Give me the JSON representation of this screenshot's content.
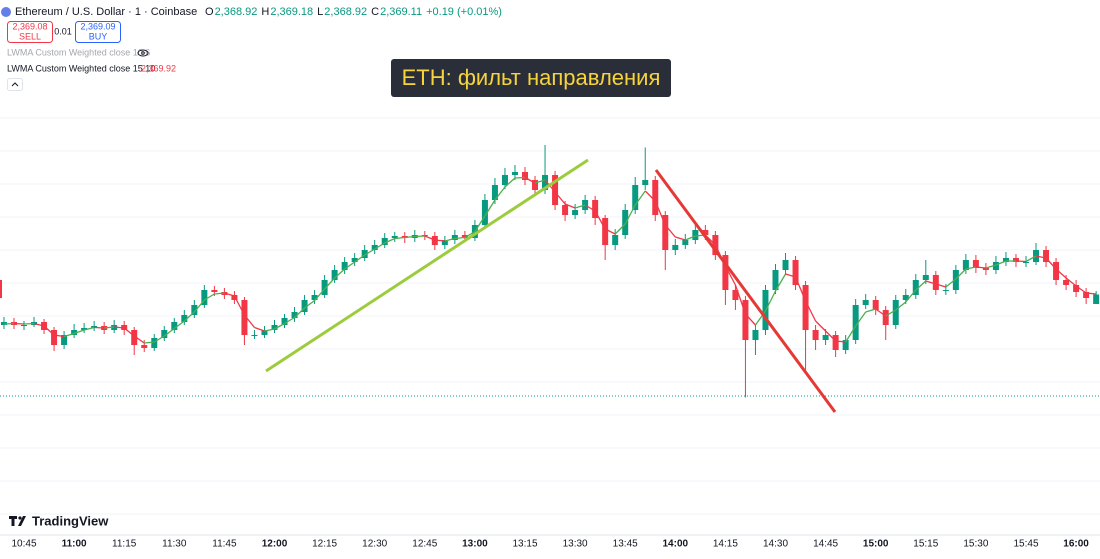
{
  "header": {
    "symbol": "Ethereum / U.S. Dollar · 1 · Coinbase",
    "ohlc": [
      {
        "key": "O",
        "value": "2,368.92"
      },
      {
        "key": "H",
        "value": "2,369.18"
      },
      {
        "key": "L",
        "value": "2,368.92"
      },
      {
        "key": "C",
        "value": "2,369.11"
      }
    ],
    "change": "+0.19 (+0.01%)",
    "sell": {
      "price": "2,369.08",
      "label": "SELL"
    },
    "spread": "0.01",
    "buy": {
      "price": "2,369.09",
      "label": "BUY"
    },
    "indicator1": "LWMA Custom Weighted close 10 6",
    "indicator2": {
      "name": "LWMA Custom Weighted close 15 10",
      "value": "2,369.92"
    }
  },
  "annotation": "ETH: фильт направления",
  "logo": "TradingView",
  "chart_data": {
    "type": "candlestick",
    "up_color": "#089981",
    "down_color": "#f23645",
    "ylim": [
      2364,
      2375
    ],
    "categories": [
      null,
      null,
      "10:45",
      null,
      null,
      null,
      null,
      "11:00",
      null,
      null,
      null,
      null,
      "11:15",
      null,
      null,
      null,
      null,
      "11:30",
      null,
      null,
      null,
      null,
      "11:45",
      null,
      null,
      null,
      null,
      "12:00",
      null,
      null,
      null,
      null,
      "12:15",
      null,
      null,
      null,
      null,
      "12:30",
      null,
      null,
      null,
      null,
      "12:45",
      null,
      null,
      null,
      null,
      "13:00",
      null,
      null,
      null,
      null,
      "13:15",
      null,
      null,
      null,
      null,
      "13:30",
      null,
      null,
      null,
      null,
      "13:45",
      null,
      null,
      null,
      null,
      "14:00",
      null,
      null,
      null,
      null,
      "14:15",
      null,
      null,
      null,
      null,
      "14:30",
      null,
      null,
      null,
      null,
      "14:45",
      null,
      null,
      null,
      null,
      "15:00",
      null,
      null,
      null,
      null,
      "15:15",
      null,
      null,
      null,
      null,
      "15:30",
      null,
      null,
      null,
      null,
      "15:45",
      null,
      null,
      null,
      null,
      "16:00",
      null,
      null
    ],
    "open": [
      2368.5,
      2368.56,
      2368.5,
      2368.5,
      2368.56,
      2368.4,
      2368.1,
      2368.3,
      2368.4,
      2368.44,
      2368.48,
      2368.4,
      2368.5,
      2368.4,
      2368.1,
      2368.04,
      2368.24,
      2368.4,
      2368.56,
      2368.7,
      2368.9,
      2369.2,
      2369.16,
      2369.1,
      2369.0,
      2368.3,
      2368.3,
      2368.4,
      2368.5,
      2368.64,
      2368.76,
      2369.0,
      2369.1,
      2369.4,
      2369.6,
      2369.76,
      2369.84,
      2370.0,
      2370.1,
      2370.24,
      2370.28,
      2370.24,
      2370.3,
      2370.28,
      2370.1,
      2370.2,
      2370.3,
      2370.24,
      2370.5,
      2371.0,
      2371.3,
      2371.5,
      2371.56,
      2371.4,
      2371.2,
      2371.5,
      2370.9,
      2370.7,
      2370.8,
      2371.0,
      2370.64,
      2370.1,
      2370.3,
      2370.8,
      2371.3,
      2371.4,
      2370.7,
      2370.0,
      2370.1,
      2370.2,
      2370.4,
      2370.3,
      2369.9,
      2369.2,
      2369.0,
      2368.2,
      2368.4,
      2369.2,
      2369.6,
      2369.8,
      2369.3,
      2368.4,
      2368.2,
      2368.3,
      2368.0,
      2368.2,
      2368.9,
      2369.0,
      2368.8,
      2368.5,
      2369.0,
      2369.1,
      2369.4,
      2369.5,
      2369.2,
      2369.2,
      2369.6,
      2369.8,
      2369.64,
      2369.6,
      2369.76,
      2369.84,
      2369.76,
      2369.76,
      2370.0,
      2369.76,
      2369.4,
      2369.3,
      2369.16,
      2368.92
    ],
    "high": [
      2368.66,
      2368.64,
      2368.58,
      2368.66,
      2368.62,
      2368.46,
      2368.38,
      2368.52,
      2368.54,
      2368.58,
      2368.56,
      2368.6,
      2368.58,
      2368.46,
      2368.2,
      2368.32,
      2368.48,
      2368.64,
      2368.8,
      2369.0,
      2369.3,
      2369.28,
      2369.24,
      2369.18,
      2369.06,
      2368.4,
      2368.48,
      2368.6,
      2368.72,
      2368.86,
      2369.1,
      2369.2,
      2369.5,
      2369.7,
      2369.86,
      2369.94,
      2370.1,
      2370.2,
      2370.34,
      2370.36,
      2370.36,
      2370.4,
      2370.38,
      2370.36,
      2370.28,
      2370.4,
      2370.38,
      2370.6,
      2371.12,
      2371.44,
      2371.64,
      2371.7,
      2371.66,
      2371.48,
      2372.1,
      2371.58,
      2370.98,
      2370.92,
      2371.1,
      2371.08,
      2370.7,
      2370.42,
      2370.92,
      2371.46,
      2372.05,
      2371.48,
      2370.78,
      2370.22,
      2370.32,
      2370.52,
      2370.5,
      2370.38,
      2369.98,
      2369.3,
      2369.08,
      2368.52,
      2369.3,
      2369.72,
      2369.94,
      2369.88,
      2369.38,
      2368.5,
      2368.42,
      2368.38,
      2368.3,
      2369.02,
      2369.12,
      2369.08,
      2368.88,
      2369.1,
      2369.22,
      2369.52,
      2369.8,
      2369.58,
      2369.32,
      2369.7,
      2369.92,
      2369.9,
      2369.74,
      2369.88,
      2369.96,
      2369.92,
      2369.88,
      2370.14,
      2370.08,
      2369.84,
      2369.5,
      2369.4,
      2369.24,
      2369.18
    ],
    "low": [
      2368.42,
      2368.42,
      2368.4,
      2368.46,
      2368.32,
      2367.98,
      2368.02,
      2368.24,
      2368.34,
      2368.38,
      2368.32,
      2368.34,
      2368.3,
      2367.9,
      2367.96,
      2367.98,
      2368.18,
      2368.34,
      2368.5,
      2368.64,
      2368.84,
      2369.08,
      2369.02,
      2368.92,
      2368.1,
      2368.22,
      2368.24,
      2368.34,
      2368.44,
      2368.56,
      2368.7,
      2368.92,
      2369.04,
      2369.34,
      2369.52,
      2369.68,
      2369.78,
      2369.92,
      2370.04,
      2370.16,
      2370.14,
      2370.16,
      2370.2,
      2370.0,
      2370.02,
      2370.12,
      2370.16,
      2370.18,
      2370.42,
      2370.92,
      2371.22,
      2371.4,
      2371.3,
      2371.1,
      2371.12,
      2370.8,
      2370.58,
      2370.62,
      2370.72,
      2370.5,
      2369.8,
      2370.0,
      2370.22,
      2370.72,
      2371.2,
      2370.58,
      2369.6,
      2369.9,
      2370.02,
      2370.12,
      2370.2,
      2369.8,
      2368.9,
      2368.8,
      2367.05,
      2367.9,
      2368.3,
      2369.12,
      2369.5,
      2369.2,
      2367.6,
      2368.0,
      2368.1,
      2367.86,
      2367.92,
      2368.12,
      2368.82,
      2368.7,
      2368.2,
      2368.42,
      2368.92,
      2369.02,
      2369.32,
      2369.1,
      2369.1,
      2369.12,
      2369.52,
      2369.54,
      2369.5,
      2369.52,
      2369.68,
      2369.66,
      2369.66,
      2369.7,
      2369.66,
      2369.3,
      2369.2,
      2369.06,
      2368.92,
      2368.92
    ],
    "close": [
      2368.56,
      2368.5,
      2368.5,
      2368.56,
      2368.4,
      2368.1,
      2368.3,
      2368.4,
      2368.44,
      2368.48,
      2368.4,
      2368.5,
      2368.4,
      2368.1,
      2368.04,
      2368.24,
      2368.4,
      2368.56,
      2368.7,
      2368.9,
      2369.2,
      2369.16,
      2369.1,
      2369.0,
      2368.3,
      2368.3,
      2368.4,
      2368.5,
      2368.64,
      2368.76,
      2369.0,
      2369.1,
      2369.4,
      2369.6,
      2369.76,
      2369.84,
      2370.0,
      2370.1,
      2370.24,
      2370.28,
      2370.24,
      2370.3,
      2370.28,
      2370.1,
      2370.2,
      2370.3,
      2370.24,
      2370.5,
      2371.0,
      2371.3,
      2371.5,
      2371.56,
      2371.4,
      2371.2,
      2371.5,
      2370.9,
      2370.7,
      2370.8,
      2371.0,
      2370.64,
      2370.1,
      2370.3,
      2370.8,
      2371.3,
      2371.4,
      2370.7,
      2370.0,
      2370.1,
      2370.2,
      2370.4,
      2370.3,
      2369.9,
      2369.2,
      2369.0,
      2368.2,
      2368.4,
      2369.2,
      2369.6,
      2369.8,
      2369.3,
      2368.4,
      2368.2,
      2368.3,
      2368.0,
      2368.2,
      2368.9,
      2369.0,
      2368.8,
      2368.5,
      2369.0,
      2369.1,
      2369.4,
      2369.5,
      2369.2,
      2369.2,
      2369.6,
      2369.8,
      2369.64,
      2369.6,
      2369.76,
      2369.84,
      2369.76,
      2369.76,
      2370.0,
      2369.76,
      2369.4,
      2369.3,
      2369.16,
      2369.04,
      2369.11
    ],
    "lwma": {
      "up_color": "#4caf50",
      "down_color": "#f23645",
      "values": [
        2368.52,
        2368.53,
        2368.52,
        2368.53,
        2368.48,
        2368.3,
        2368.27,
        2368.33,
        2368.4,
        2368.45,
        2368.44,
        2368.46,
        2368.44,
        2368.28,
        2368.14,
        2368.16,
        2368.28,
        2368.43,
        2368.58,
        2368.76,
        2369.0,
        2369.12,
        2369.14,
        2369.08,
        2368.7,
        2368.45,
        2368.38,
        2368.42,
        2368.53,
        2368.65,
        2368.84,
        2368.99,
        2369.22,
        2369.44,
        2369.62,
        2369.76,
        2369.9,
        2370.02,
        2370.14,
        2370.23,
        2370.25,
        2370.27,
        2370.28,
        2370.2,
        2370.18,
        2370.23,
        2370.25,
        2370.37,
        2370.68,
        2371.0,
        2371.26,
        2371.44,
        2371.45,
        2371.34,
        2371.4,
        2371.16,
        2370.92,
        2370.84,
        2370.9,
        2370.78,
        2370.42,
        2370.32,
        2370.52,
        2370.9,
        2371.18,
        2370.98,
        2370.5,
        2370.26,
        2370.2,
        2370.28,
        2370.3,
        2370.1,
        2369.68,
        2369.3,
        2368.72,
        2368.5,
        2368.78,
        2369.18,
        2369.52,
        2369.46,
        2368.98,
        2368.58,
        2368.38,
        2368.18,
        2368.16,
        2368.48,
        2368.76,
        2368.82,
        2368.68,
        2368.8,
        2368.96,
        2369.2,
        2369.38,
        2369.32,
        2369.26,
        2369.42,
        2369.62,
        2369.66,
        2369.64,
        2369.7,
        2369.78,
        2369.78,
        2369.77,
        2369.88,
        2369.84,
        2369.62,
        2369.44,
        2369.28,
        2369.14,
        2369.12
      ]
    }
  }
}
